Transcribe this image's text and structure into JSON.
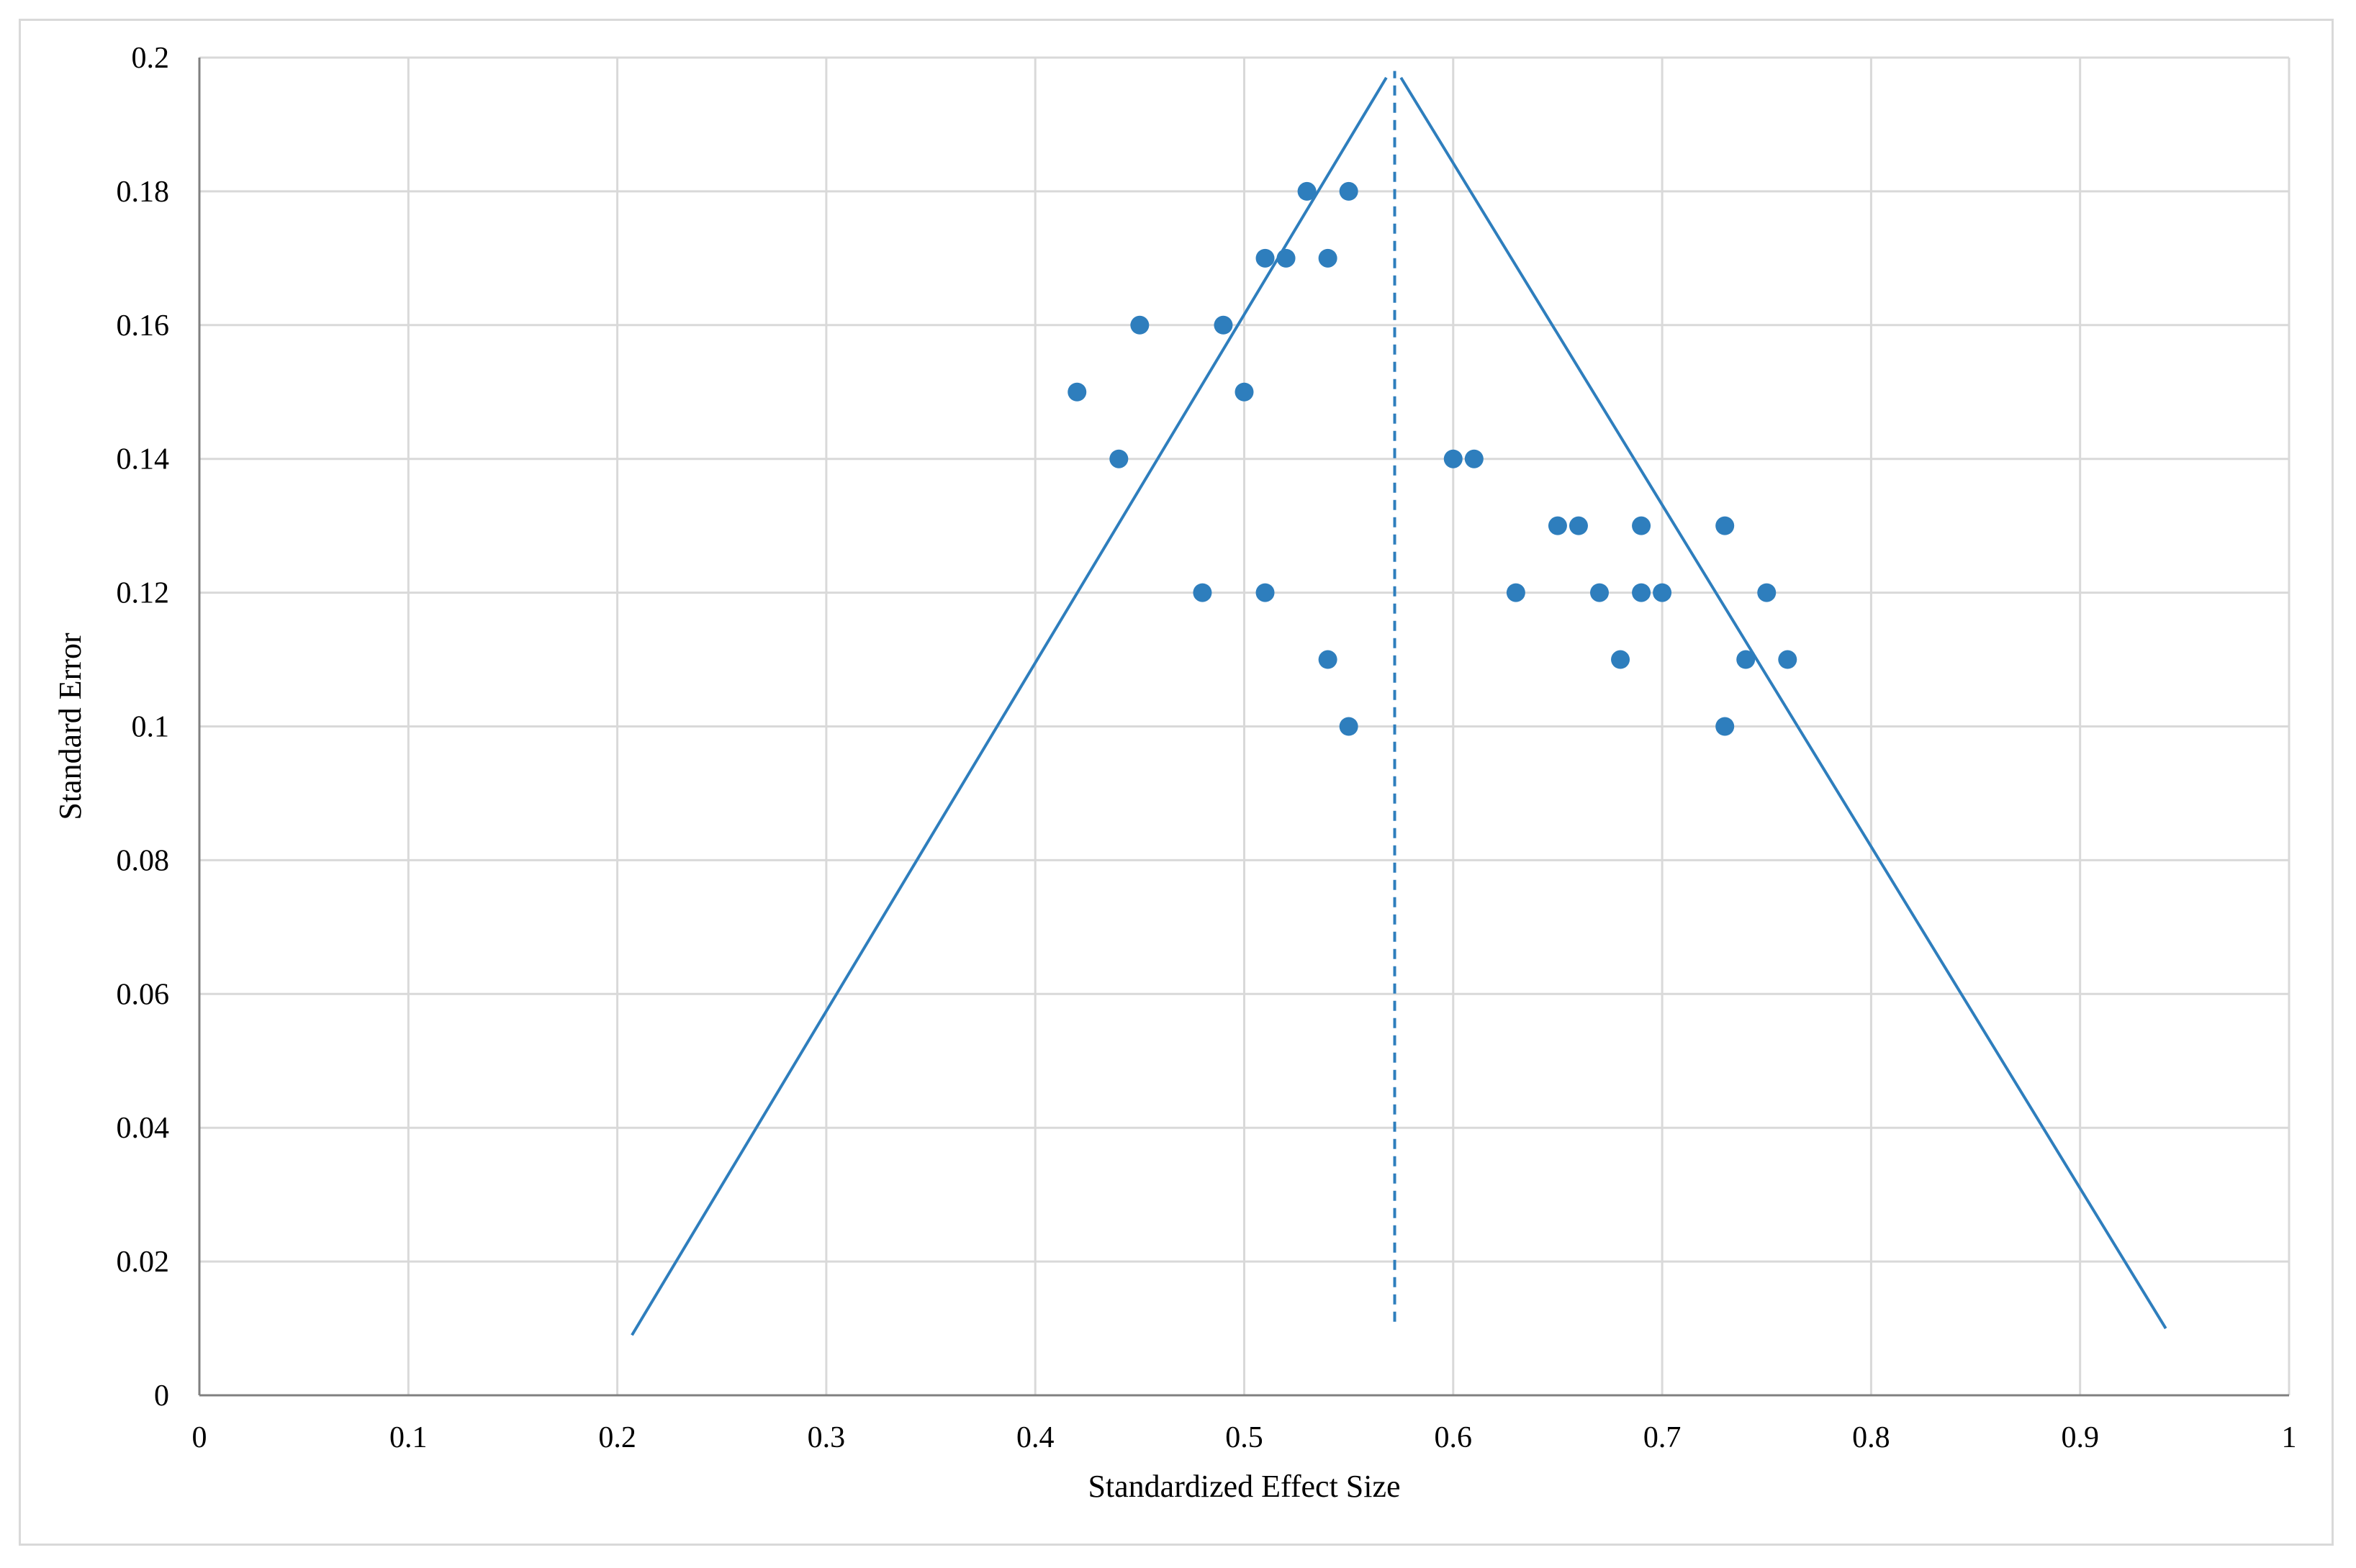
{
  "colors": {
    "series": "#2e7ebd",
    "grid": "#d9d9d9",
    "axis": "#808080",
    "background": "#ffffff"
  },
  "chart_data": {
    "type": "scatter",
    "title": "",
    "xlabel": "Standardized Effect Size",
    "ylabel": "Standard Error",
    "xlim": [
      0,
      1
    ],
    "ylim": [
      0,
      0.2
    ],
    "x_ticks": [
      "0",
      "0.1",
      "0.2",
      "0.3",
      "0.4",
      "0.5",
      "0.6",
      "0.7",
      "0.8",
      "0.9",
      "1"
    ],
    "y_ticks": [
      "0",
      "0.02",
      "0.04",
      "0.06",
      "0.08",
      "0.1",
      "0.12",
      "0.14",
      "0.16",
      "0.18",
      "0.2"
    ],
    "grid": true,
    "legend": "none",
    "points": [
      {
        "x": 0.53,
        "y": 0.18
      },
      {
        "x": 0.55,
        "y": 0.18
      },
      {
        "x": 0.51,
        "y": 0.17
      },
      {
        "x": 0.52,
        "y": 0.17
      },
      {
        "x": 0.54,
        "y": 0.17
      },
      {
        "x": 0.45,
        "y": 0.16
      },
      {
        "x": 0.49,
        "y": 0.16
      },
      {
        "x": 0.42,
        "y": 0.15
      },
      {
        "x": 0.5,
        "y": 0.15
      },
      {
        "x": 0.44,
        "y": 0.14
      },
      {
        "x": 0.6,
        "y": 0.14
      },
      {
        "x": 0.61,
        "y": 0.14
      },
      {
        "x": 0.65,
        "y": 0.13
      },
      {
        "x": 0.66,
        "y": 0.13
      },
      {
        "x": 0.69,
        "y": 0.13
      },
      {
        "x": 0.73,
        "y": 0.13
      },
      {
        "x": 0.48,
        "y": 0.12
      },
      {
        "x": 0.51,
        "y": 0.12
      },
      {
        "x": 0.63,
        "y": 0.12
      },
      {
        "x": 0.67,
        "y": 0.12
      },
      {
        "x": 0.69,
        "y": 0.12
      },
      {
        "x": 0.7,
        "y": 0.12
      },
      {
        "x": 0.75,
        "y": 0.12
      },
      {
        "x": 0.54,
        "y": 0.11
      },
      {
        "x": 0.68,
        "y": 0.11
      },
      {
        "x": 0.74,
        "y": 0.11
      },
      {
        "x": 0.76,
        "y": 0.11
      },
      {
        "x": 0.55,
        "y": 0.1
      },
      {
        "x": 0.73,
        "y": 0.1
      }
    ],
    "funnel": {
      "left_line": [
        [
          0.207,
          0.009
        ],
        [
          0.568,
          0.197
        ]
      ],
      "right_line": [
        [
          0.575,
          0.197
        ],
        [
          0.941,
          0.01
        ]
      ],
      "mean_line": {
        "x": 0.572,
        "y_from": 0.011,
        "y_to": 0.198,
        "style": "dashed"
      }
    }
  }
}
